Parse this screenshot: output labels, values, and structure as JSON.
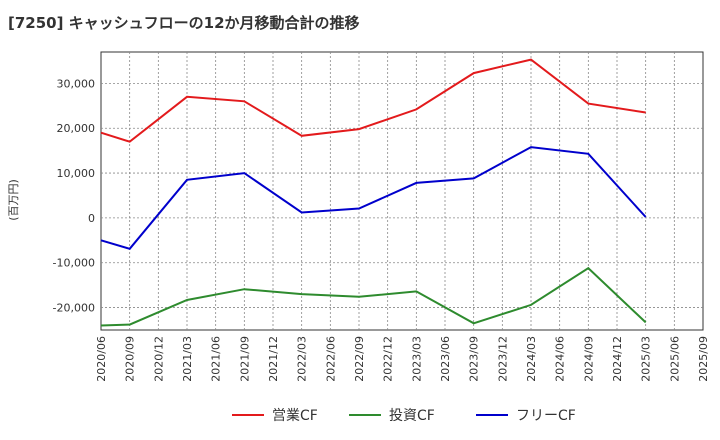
{
  "chart_data": {
    "type": "line",
    "title": "[7250]  キャッシュフローの12か月移動合計の推移",
    "ylabel": "(百万円)",
    "xlabel": "",
    "ylim": [
      -25000,
      37000
    ],
    "yticks": [
      30000,
      20000,
      10000,
      0,
      -10000,
      -20000
    ],
    "ytick_labels": [
      "30,000",
      "20,000",
      "10,000",
      "0",
      "-10,000",
      "-20,000"
    ],
    "categories": [
      "2020/06",
      "2020/09",
      "2020/12",
      "2021/03",
      "2021/06",
      "2021/09",
      "2021/12",
      "2022/03",
      "2022/06",
      "2022/09",
      "2022/12",
      "2023/03",
      "2023/06",
      "2023/09",
      "2023/12",
      "2024/03",
      "2024/06",
      "2024/09",
      "2024/12",
      "2025/03",
      "2025/06",
      "2025/09"
    ],
    "grid": true,
    "legend_position": "bottom",
    "series": [
      {
        "name": "営業CF",
        "color": "#e31a1c",
        "values": [
          19000,
          17000,
          null,
          27000,
          null,
          26000,
          null,
          18300,
          null,
          19800,
          null,
          24200,
          null,
          32300,
          null,
          35300,
          null,
          25500,
          null,
          23500,
          null,
          null
        ]
      },
      {
        "name": "投資CF",
        "color": "#2e8b2e",
        "values": [
          -24000,
          -23800,
          null,
          -18300,
          null,
          -15900,
          null,
          -17000,
          null,
          -17600,
          null,
          -16400,
          null,
          -23500,
          null,
          -19400,
          null,
          -11200,
          null,
          -23300,
          null,
          null
        ]
      },
      {
        "name": "フリーCF",
        "color": "#0000cc",
        "values": [
          -5000,
          -6900,
          null,
          8500,
          null,
          10000,
          null,
          1200,
          null,
          2100,
          null,
          7800,
          null,
          8800,
          null,
          15800,
          null,
          14300,
          null,
          200,
          null,
          null
        ]
      }
    ]
  }
}
